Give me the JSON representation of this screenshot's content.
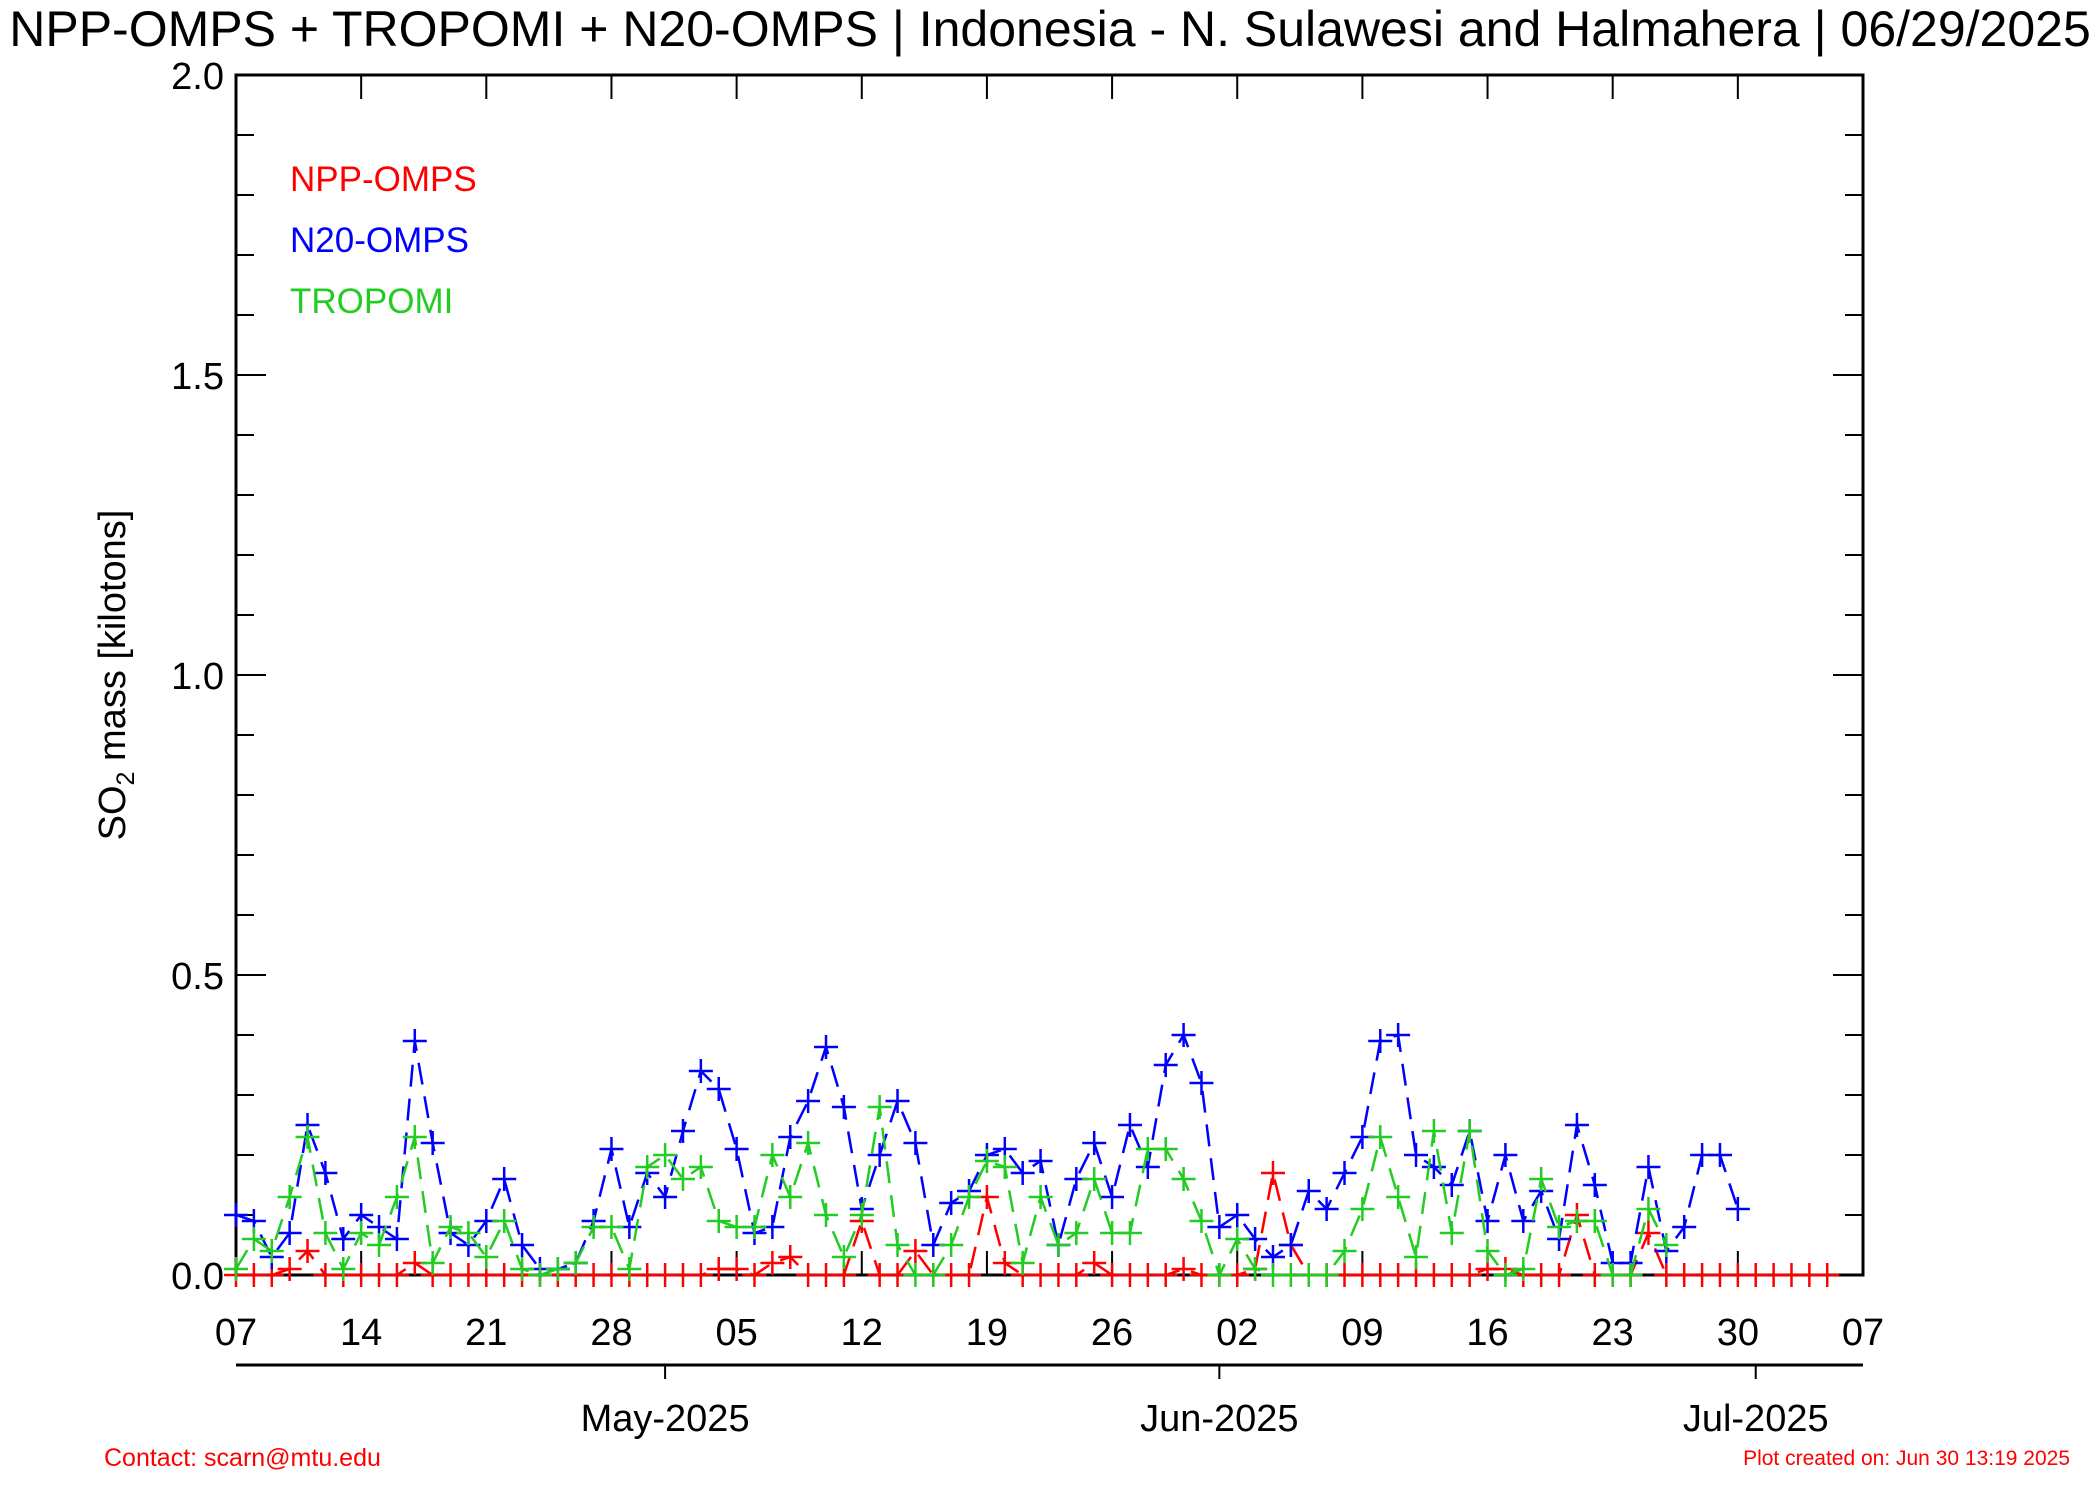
{
  "colors": {
    "npp": "#ff0000",
    "n20": "#0000ff",
    "tropomi": "#22cc22",
    "footer": "#ff0000",
    "axis": "#000000"
  },
  "chart_data": {
    "type": "line",
    "title": "NPP-OMPS + TROPOMI + N20-OMPS | Indonesia - N. Sulawesi and Halmahera | 06/29/2025",
    "ylabel_pre": "SO",
    "ylabel_sub": "2",
    "ylabel_post": " mass [kilotons]",
    "ylim": [
      0,
      2.0
    ],
    "yticks": [
      "0.0",
      "0.5",
      "1.0",
      "1.5",
      "2.0"
    ],
    "x_start": "2025-04-07",
    "x_end": "2025-07-07",
    "xticks": [
      "07",
      "14",
      "21",
      "28",
      "05",
      "12",
      "19",
      "26",
      "02",
      "09",
      "16",
      "23",
      "30",
      "07"
    ],
    "months": [
      "May-2025",
      "Jun-2025",
      "Jul-2025"
    ],
    "legend_position": "top-left",
    "series": [
      {
        "name": "NPP-OMPS",
        "color_key": "npp",
        "x_start": "2025-04-07",
        "values": [
          0,
          0,
          0,
          0.01,
          0.04,
          0,
          0,
          0,
          0,
          0,
          0.02,
          0,
          0,
          0,
          0,
          0,
          0,
          0,
          0,
          0,
          0,
          0,
          0,
          0,
          0,
          0,
          0,
          0.01,
          0.01,
          0,
          0.02,
          0.03,
          0,
          0,
          0,
          0.09,
          0,
          0,
          0.04,
          0,
          0,
          0,
          0.13,
          0.02,
          0,
          0,
          0,
          0,
          0.02,
          0,
          0,
          0,
          0,
          0.01,
          0,
          0,
          0,
          0.01,
          0.17,
          0.05,
          0,
          0,
          0,
          0,
          0,
          0,
          0,
          0,
          0,
          0,
          0.01,
          0.01,
          0,
          0,
          0,
          0.1,
          0,
          0,
          0,
          0.07,
          0,
          0,
          0,
          0,
          0,
          0,
          0,
          0,
          0,
          0
        ]
      },
      {
        "name": "N20-OMPS",
        "color_key": "n20",
        "x_start": "2025-04-07",
        "values": [
          0.1,
          0.09,
          0.03,
          0.07,
          0.25,
          0.17,
          0.06,
          0.1,
          0.08,
          0.06,
          0.39,
          0.22,
          0.07,
          0.05,
          0.09,
          0.16,
          0.05,
          0.01,
          0.01,
          0.02,
          0.09,
          0.21,
          0.08,
          0.17,
          0.13,
          0.24,
          0.34,
          0.31,
          0.21,
          0.07,
          0.08,
          0.23,
          0.29,
          0.38,
          0.28,
          0.11,
          0.2,
          0.29,
          0.22,
          0.05,
          0.12,
          0.14,
          0.2,
          0.21,
          0.17,
          0.19,
          0.05,
          0.16,
          0.22,
          0.13,
          0.25,
          0.18,
          0.35,
          0.4,
          0.32,
          0.08,
          0.1,
          0.06,
          0.03,
          0.05,
          0.14,
          0.11,
          0.17,
          0.23,
          0.39,
          0.4,
          0.2,
          0.18,
          0.15,
          0.24,
          0.09,
          0.2,
          0.09,
          0.14,
          0.06,
          0.25,
          0.15,
          0.02,
          0.02,
          0.18,
          0.04,
          0.08,
          0.2,
          0.2,
          0.11
        ]
      },
      {
        "name": "TROPOMI",
        "color_key": "tropomi",
        "x_start": "2025-04-07",
        "values": [
          0.01,
          0.06,
          0.04,
          0.13,
          0.23,
          0.07,
          0.01,
          0.07,
          0.05,
          0.13,
          0.23,
          0.02,
          0.08,
          0.07,
          0.03,
          0.09,
          0.01,
          0,
          0.01,
          0.02,
          0.08,
          0.08,
          0.01,
          0.18,
          0.2,
          0.16,
          0.18,
          0.09,
          0.08,
          0.08,
          0.2,
          0.13,
          0.22,
          0.1,
          0.03,
          0.1,
          0.28,
          0.05,
          0,
          0,
          0.05,
          0.13,
          0.19,
          0.18,
          0.02,
          0.13,
          0.05,
          0.07,
          0.16,
          0.07,
          0.07,
          0.21,
          0.21,
          0.16,
          0.09,
          0,
          0.06,
          0.01,
          0,
          0,
          0,
          0,
          0.04,
          0.11,
          0.23,
          0.13,
          0.03,
          0.24,
          0.07,
          0.24,
          0.04,
          0,
          0.01,
          0.16,
          0.08,
          0.09,
          0.09,
          0,
          0,
          0.11,
          0.05
        ]
      }
    ]
  },
  "footer": {
    "contact": "Contact: scarn@mtu.edu",
    "created": "Plot created on: Jun 30 13:19 2025"
  }
}
